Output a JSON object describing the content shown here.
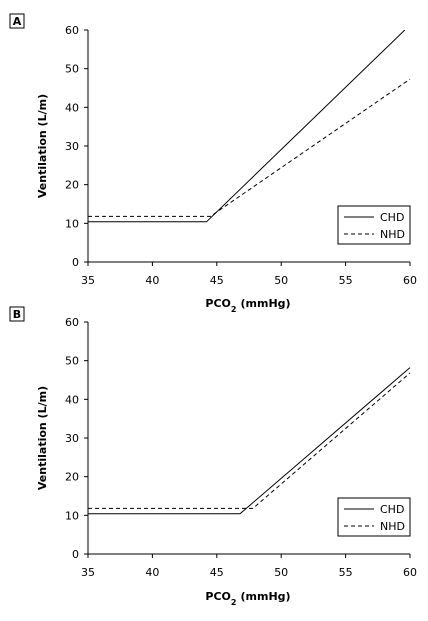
{
  "chart_data": [
    {
      "type": "line",
      "panel_label": "A",
      "xlabel": "PCO",
      "xlabel_sub": "2",
      "xlabel_unit": "(mmHg)",
      "ylabel": "Ventilation (L/m)",
      "xlim": [
        35,
        60
      ],
      "ylim": [
        0,
        60
      ],
      "xticks": [
        35,
        40,
        45,
        50,
        55,
        60
      ],
      "yticks": [
        0,
        10,
        20,
        30,
        40,
        50,
        60
      ],
      "grid": false,
      "legend_position": "bottom-right",
      "series": [
        {
          "name": "CHD",
          "style": "solid",
          "x": [
            35,
            44.2,
            59.6
          ],
          "y": [
            10.4,
            10.4,
            60
          ]
        },
        {
          "name": "NHD",
          "style": "dashed",
          "x": [
            35,
            44.5,
            60
          ],
          "y": [
            11.8,
            11.8,
            47.3
          ]
        }
      ]
    },
    {
      "type": "line",
      "panel_label": "B",
      "xlabel": "PCO",
      "xlabel_sub": "2",
      "xlabel_unit": "(mmHg)",
      "ylabel": "Ventilation (L/m)",
      "xlim": [
        35,
        60
      ],
      "ylim": [
        0,
        60
      ],
      "xticks": [
        35,
        40,
        45,
        50,
        55,
        60
      ],
      "yticks": [
        0,
        10,
        20,
        30,
        40,
        50,
        60
      ],
      "grid": false,
      "legend_position": "bottom-right",
      "series": [
        {
          "name": "CHD",
          "style": "solid",
          "x": [
            35,
            46.8,
            60
          ],
          "y": [
            10.4,
            10.4,
            48.2
          ]
        },
        {
          "name": "NHD",
          "style": "dashed",
          "x": [
            35,
            47.8,
            60
          ],
          "y": [
            11.8,
            11.8,
            46.8
          ]
        }
      ]
    }
  ]
}
